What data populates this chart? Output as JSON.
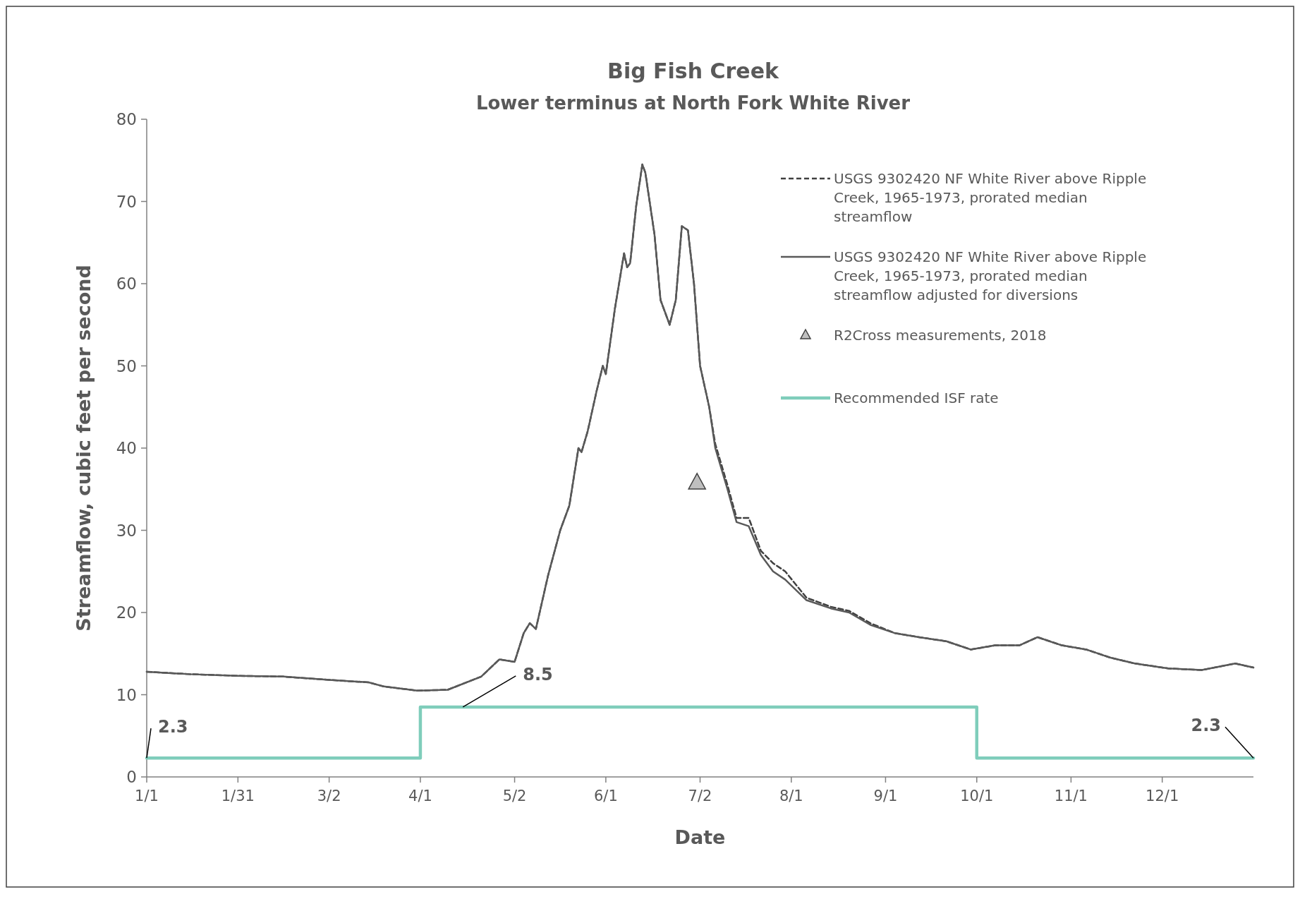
{
  "chart_data": {
    "type": "line",
    "title": "Big Fish Creek",
    "subtitle": "Lower terminus at North Fork White River",
    "xlabel": "Date",
    "ylabel": "Streamflow, cubic feet per second",
    "xlim": [
      "--01-01",
      "--12-31"
    ],
    "xticks": [
      {
        "value": "--01-01",
        "label": "1/1"
      },
      {
        "value": "--01-31",
        "label": "1/31"
      },
      {
        "value": "--03-02",
        "label": "3/2"
      },
      {
        "value": "--04-01",
        "label": "4/1"
      },
      {
        "value": "--05-02",
        "label": "5/2"
      },
      {
        "value": "--06-01",
        "label": "6/1"
      },
      {
        "value": "--07-02",
        "label": "7/2"
      },
      {
        "value": "--08-01",
        "label": "8/1"
      },
      {
        "value": "--09-01",
        "label": "9/1"
      },
      {
        "value": "--10-01",
        "label": "10/1"
      },
      {
        "value": "--11-01",
        "label": "11/1"
      },
      {
        "value": "--12-01",
        "label": "12/1"
      }
    ],
    "ylim": [
      0,
      80
    ],
    "yticks": [
      0,
      10,
      20,
      30,
      40,
      50,
      60,
      70,
      80
    ],
    "grid": false,
    "legend": "top right",
    "x": [
      "--01-01",
      "--01-15",
      "--01-31",
      "--02-15",
      "--03-02",
      "--03-15",
      "--03-20",
      "--03-31",
      "--04-10",
      "--04-21",
      "--04-27",
      "--05-02",
      "--05-05",
      "--05-07",
      "--05-09",
      "--05-13",
      "--05-17",
      "--05-20",
      "--05-23",
      "--05-24",
      "--05-26",
      "--05-29",
      "--05-31",
      "--06-01",
      "--06-04",
      "--06-07",
      "--06-08",
      "--06-09",
      "--06-11",
      "--06-13",
      "--06-14",
      "--06-17",
      "--06-19",
      "--06-22",
      "--06-24",
      "--06-26",
      "--06-28",
      "--06-30",
      "--07-02",
      "--07-05",
      "--07-07",
      "--07-11",
      "--07-14",
      "--07-18",
      "--07-22",
      "--07-26",
      "--07-30",
      "--08-06",
      "--08-14",
      "--08-20",
      "--08-27",
      "--09-04",
      "--09-12",
      "--09-21",
      "--09-29",
      "--10-07",
      "--10-15",
      "--10-21",
      "--10-29",
      "--11-06",
      "--11-14",
      "--11-22",
      "--12-03",
      "--12-14",
      "--12-25",
      "--12-31"
    ],
    "series": [
      {
        "name": "USGS 9302420 NF White River above Ripple Creek, 1965-1973, prorated median streamflow",
        "line_style": "dashed",
        "color": "#404040",
        "values": [
          12.8,
          12.5,
          12.3,
          12.2,
          11.8,
          11.5,
          11.0,
          10.5,
          10.6,
          12.2,
          14.3,
          14.0,
          17.5,
          18.7,
          18.0,
          24.5,
          30.0,
          33.0,
          40.0,
          39.5,
          42.0,
          47.0,
          50.0,
          49.0,
          57.0,
          63.7,
          62.0,
          62.5,
          69.5,
          74.5,
          73.5,
          66.0,
          58.0,
          55.0,
          58.0,
          67.0,
          66.5,
          60.0,
          50.0,
          45.0,
          40.5,
          35.5,
          31.5,
          31.5,
          27.5,
          26.0,
          25.0,
          21.8,
          20.7,
          20.2,
          18.7,
          17.5,
          17.0,
          16.5,
          15.5,
          16.0,
          16.0,
          17.0,
          16.0,
          15.5,
          14.5,
          13.8,
          13.2,
          13.0,
          13.8,
          13.3
        ]
      },
      {
        "name": "USGS 9302420 NF White River above Ripple Creek, 1965-1973, prorated median streamflow adjusted for diversions",
        "line_style": "solid",
        "color": "#595959",
        "values": [
          12.8,
          12.5,
          12.3,
          12.2,
          11.8,
          11.5,
          11.0,
          10.5,
          10.6,
          12.2,
          14.3,
          14.0,
          17.5,
          18.7,
          18.0,
          24.5,
          30.0,
          33.0,
          40.0,
          39.5,
          42.0,
          47.0,
          50.0,
          49.0,
          57.0,
          63.7,
          62.0,
          62.5,
          69.5,
          74.5,
          73.5,
          66.0,
          58.0,
          55.0,
          58.0,
          67.0,
          66.5,
          60.0,
          50.0,
          45.0,
          40.0,
          35.0,
          31.0,
          30.5,
          27.0,
          25.0,
          24.0,
          21.5,
          20.5,
          20.0,
          18.5,
          17.5,
          17.0,
          16.5,
          15.5,
          16.0,
          16.0,
          17.0,
          16.0,
          15.5,
          14.5,
          13.8,
          13.2,
          13.0,
          13.8,
          13.3
        ]
      },
      {
        "name": "R2Cross measurements, 2018",
        "type": "scatter",
        "marker": "triangle",
        "color": "#bfbfbf",
        "x": [
          "--07-01"
        ],
        "values": [
          35.8
        ]
      },
      {
        "name": "Recommended ISF rate",
        "type": "step",
        "color": "#7fcdbb",
        "x": [
          "--01-01",
          "--04-01",
          "--10-01",
          "--12-31"
        ],
        "values": [
          2.3,
          8.5,
          2.3,
          2.3
        ]
      }
    ],
    "annotations": [
      {
        "text": "2.3",
        "x": "--01-01",
        "y": 2.3
      },
      {
        "text": "8.5",
        "x": "--04-15",
        "y": 8.5
      },
      {
        "text": "2.3",
        "x": "--12-31",
        "y": 2.3
      }
    ]
  }
}
